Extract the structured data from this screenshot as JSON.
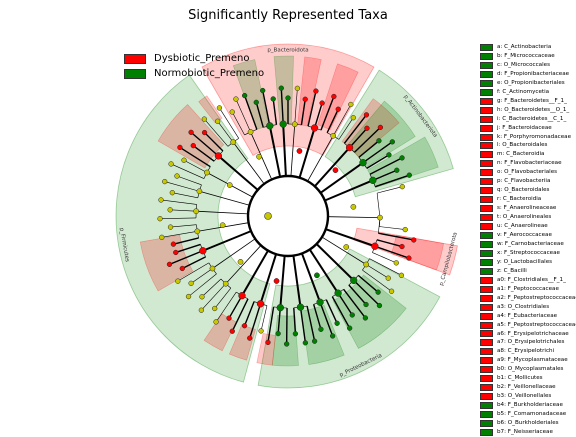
{
  "title": "Significantly Represented Taxa",
  "colors": {
    "dysbiotic": "#ff0000",
    "normobiotic": "#008000",
    "nonsig": "#c8c800"
  },
  "legend": [
    {
      "label": "Dysbiotic_Premeno",
      "color": "#ff0000"
    },
    {
      "label": "Normobiotic_Premeno",
      "color": "#008000"
    }
  ],
  "phyla": [
    {
      "name": "p_Firmicutes",
      "color": "#008000",
      "start": 195,
      "end": 325
    },
    {
      "name": "p_Bacteroidota",
      "color": "#ff0000",
      "start": 330,
      "end": 30
    },
    {
      "name": "p_Actinobacteriota",
      "color": "#008000",
      "start": 32,
      "end": 74
    },
    {
      "name": "p_Campilobacterota",
      "color": "#ff0000",
      "start": 100,
      "end": 110
    },
    {
      "name": "p_Proteobacteria",
      "color": "#008000",
      "start": 118,
      "end": 190
    }
  ],
  "keys": [
    {
      "label": "a: C_Actinobacteria",
      "color": "#008000"
    },
    {
      "label": "b: F_Micrococcaceae",
      "color": "#008000"
    },
    {
      "label": "c: O_Micrococcales",
      "color": "#008000"
    },
    {
      "label": "d: F_Propionibacteriaceae",
      "color": "#008000"
    },
    {
      "label": "e: O_Propionibacteriales",
      "color": "#008000"
    },
    {
      "label": "f: C_Actinomycetia",
      "color": "#008000"
    },
    {
      "label": "g: F_Bacteroidetes__F_1_",
      "color": "#ff0000"
    },
    {
      "label": "h: O_Bacteroidetes__O_1_",
      "color": "#ff0000"
    },
    {
      "label": "i: C_Bacteroidetes__C_1_",
      "color": "#ff0000"
    },
    {
      "label": "j: F_Bacteroidaceae",
      "color": "#ff0000"
    },
    {
      "label": "k: F_Porphyromonadaceae",
      "color": "#ff0000"
    },
    {
      "label": "l: O_Bacteroidales",
      "color": "#ff0000"
    },
    {
      "label": "m: C_Bacteroidia",
      "color": "#ff0000"
    },
    {
      "label": "n: F_Flavobacteriaceae",
      "color": "#ff0000"
    },
    {
      "label": "o: O_Flavobacteriales",
      "color": "#ff0000"
    },
    {
      "label": "p: C_Flavobacteriia",
      "color": "#ff0000"
    },
    {
      "label": "q: O_Bacteroidales",
      "color": "#ff0000"
    },
    {
      "label": "r: C_Bacteroidia",
      "color": "#ff0000"
    },
    {
      "label": "s: F_Anaerolineaceae",
      "color": "#ff0000"
    },
    {
      "label": "t: O_Anaerolineales",
      "color": "#ff0000"
    },
    {
      "label": "u: C_Anaerolineae",
      "color": "#ff0000"
    },
    {
      "label": "v: F_Aerococcaceae",
      "color": "#008000"
    },
    {
      "label": "w: F_Carnobacteriaceae",
      "color": "#008000"
    },
    {
      "label": "x: F_Streptococcaceae",
      "color": "#008000"
    },
    {
      "label": "y: O_Lactobacillales",
      "color": "#008000"
    },
    {
      "label": "z: C_Bacilli",
      "color": "#008000"
    },
    {
      "label": "a0: F_Clostridiales__F_1_",
      "color": "#ff0000"
    },
    {
      "label": "a1: F_Peptococcaceae",
      "color": "#ff0000"
    },
    {
      "label": "a2: F_Peptostreptococcaceae",
      "color": "#ff0000"
    },
    {
      "label": "a3: O_Clostridiales",
      "color": "#ff0000"
    },
    {
      "label": "a4: F_Eubacteriaceae",
      "color": "#ff0000"
    },
    {
      "label": "a5: F_Peptostreptococcaceae",
      "color": "#ff0000"
    },
    {
      "label": "a6: F_Erysipelotrichaceae",
      "color": "#ff0000"
    },
    {
      "label": "a7: O_Erysipelotrichales",
      "color": "#ff0000"
    },
    {
      "label": "a8: C_Erysipelotrichi",
      "color": "#ff0000"
    },
    {
      "label": "a9: F_Mycoplasmataceae",
      "color": "#ff0000"
    },
    {
      "label": "b0: O_Mycoplasmatales",
      "color": "#ff0000"
    },
    {
      "label": "b1: C_Mollicutes",
      "color": "#ff0000"
    },
    {
      "label": "b2: F_Veillonellaceae",
      "color": "#ff0000"
    },
    {
      "label": "b3: O_Veillonellales",
      "color": "#ff0000"
    },
    {
      "label": "b4: F_Burkholderiaceae",
      "color": "#008000"
    },
    {
      "label": "b5: F_Comamonadaceae",
      "color": "#008000"
    },
    {
      "label": "b6: O_Burkholderiales",
      "color": "#008000"
    },
    {
      "label": "b7: F_Neisseriaceae",
      "color": "#008000"
    }
  ]
}
